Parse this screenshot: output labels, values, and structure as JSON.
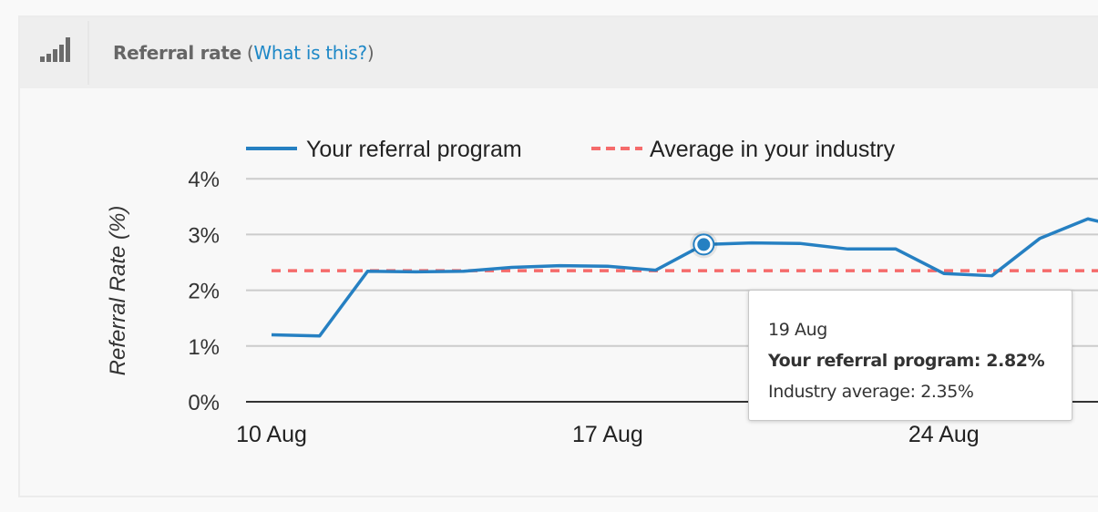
{
  "panel": {
    "icon": "signal-bars-icon",
    "title": "Referral rate",
    "paren_open": " (",
    "help_link": "What is this?",
    "paren_close": ")"
  },
  "tooltip": {
    "date": "19 Aug",
    "series_line": "Your referral program: 2.82%",
    "industry_line": "Industry average: 2.35%"
  },
  "colors": {
    "series": "#2680c2",
    "industry": "#f56b6b",
    "grid": "#cccccc",
    "axis": "#333333",
    "link": "#1e88c7"
  },
  "chart_data": {
    "type": "line",
    "title": "",
    "xlabel": "",
    "ylabel": "Referral Rate (%)",
    "ylim": [
      0,
      4
    ],
    "yticks": [
      "0%",
      "1%",
      "2%",
      "3%",
      "4%"
    ],
    "xtick_labels": [
      "10 Aug",
      "17 Aug",
      "24 Aug"
    ],
    "grid": true,
    "legend_position": "top",
    "x": [
      "10 Aug",
      "11 Aug",
      "12 Aug",
      "13 Aug",
      "14 Aug",
      "15 Aug",
      "16 Aug",
      "17 Aug",
      "18 Aug",
      "19 Aug",
      "20 Aug",
      "21 Aug",
      "22 Aug",
      "23 Aug",
      "24 Aug",
      "25 Aug",
      "26 Aug",
      "27 Aug"
    ],
    "series": [
      {
        "name": "Your referral program",
        "style": "solid",
        "values": [
          1.2,
          1.18,
          2.34,
          2.33,
          2.34,
          2.41,
          2.44,
          2.43,
          2.36,
          2.82,
          2.85,
          2.84,
          2.74,
          2.74,
          2.3,
          2.26,
          2.93,
          3.28
        ]
      },
      {
        "name": "Average in your industry",
        "style": "dashed",
        "values": [
          2.35,
          2.35,
          2.35,
          2.35,
          2.35,
          2.35,
          2.35,
          2.35,
          2.35,
          2.35,
          2.35,
          2.35,
          2.35,
          2.35,
          2.35,
          2.35,
          2.35,
          2.35
        ]
      }
    ],
    "highlighted_point": {
      "x": "19 Aug",
      "value": 2.82
    }
  }
}
